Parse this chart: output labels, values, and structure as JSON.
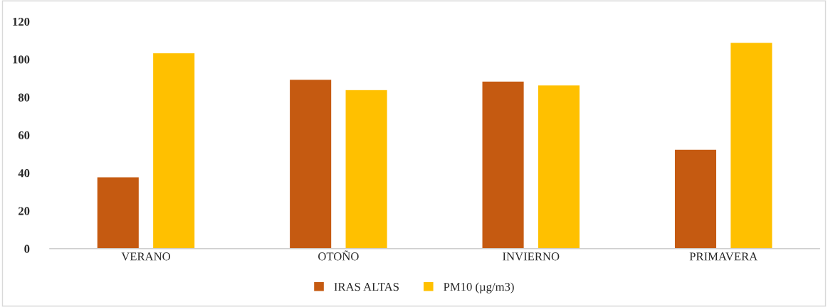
{
  "chart_data": {
    "type": "bar",
    "categories": [
      "VERANO",
      "OTOÑO",
      "INVIERNO",
      "PRIMAVERA"
    ],
    "series": [
      {
        "name": "IRAS ALTAS",
        "color": "#c55a11",
        "values": [
          38,
          89.5,
          88.5,
          52.5
        ]
      },
      {
        "name": "PM10 (µg/m3)",
        "color": "#ffc000",
        "values": [
          103.5,
          84,
          86.5,
          109
        ]
      }
    ],
    "ylim": [
      0,
      120
    ],
    "yticks": [
      0,
      20,
      40,
      60,
      80,
      100,
      120
    ],
    "grid": false,
    "legend": "bottom"
  }
}
